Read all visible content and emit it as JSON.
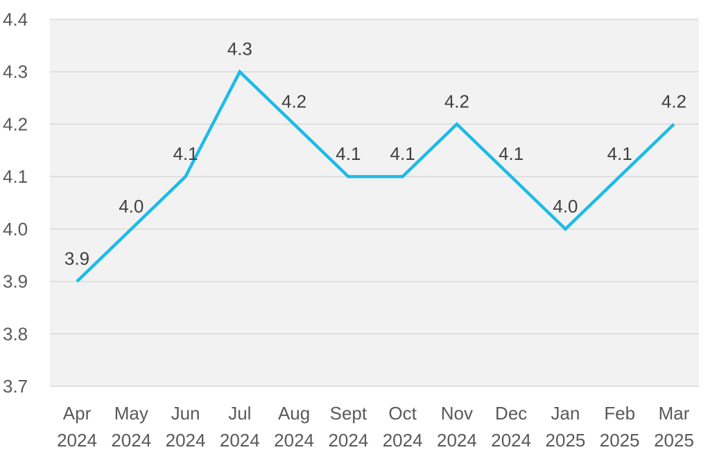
{
  "colors": {
    "plot_background": "#f2f2f2",
    "line": "#1cbbe8",
    "gridline": "#d9d9d9",
    "tick_text": "#595959",
    "label_text": "#404040"
  },
  "chart_data": {
    "type": "line",
    "title": "",
    "xlabel": "",
    "ylabel": "",
    "categories": [
      [
        "Apr",
        "2024"
      ],
      [
        "May",
        "2024"
      ],
      [
        "Jun",
        "2024"
      ],
      [
        "Jul",
        "2024"
      ],
      [
        "Aug",
        "2024"
      ],
      [
        "Sept",
        "2024"
      ],
      [
        "Oct",
        "2024"
      ],
      [
        "Nov",
        "2024"
      ],
      [
        "Dec",
        "2024"
      ],
      [
        "Jan",
        "2025"
      ],
      [
        "Feb",
        "2025"
      ],
      [
        "Mar",
        "2025"
      ]
    ],
    "values": [
      3.9,
      4.0,
      4.1,
      4.3,
      4.2,
      4.1,
      4.1,
      4.2,
      4.1,
      4.0,
      4.1,
      4.2
    ],
    "data_labels": [
      "3.9",
      "4.0",
      "4.1",
      "4.3",
      "4.2",
      "4.1",
      "4.1",
      "4.2",
      "4.1",
      "4.0",
      "4.1",
      "4.2"
    ],
    "ylim": [
      3.7,
      4.4
    ],
    "yticks": [
      "3.7",
      "3.8",
      "3.9",
      "4.0",
      "4.1",
      "4.2",
      "4.3",
      "4.4"
    ],
    "grid": true,
    "legend": "none"
  }
}
